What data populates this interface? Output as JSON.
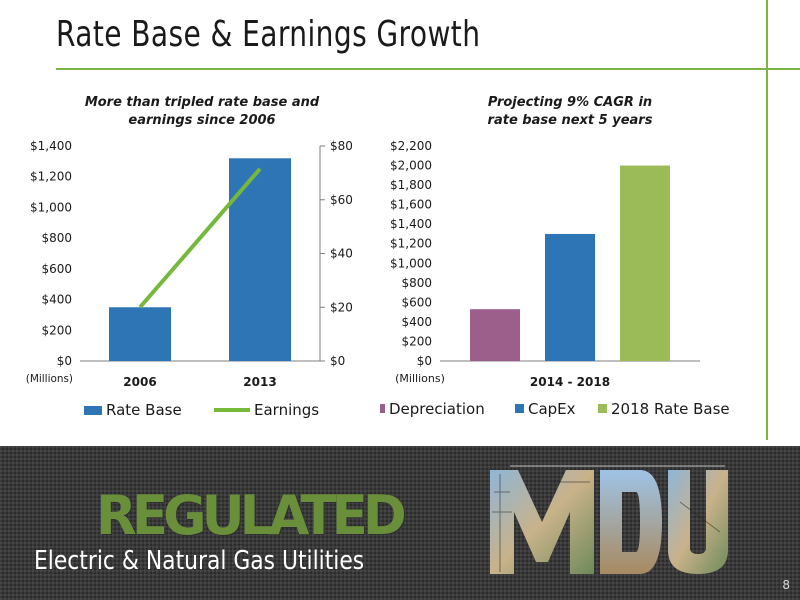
{
  "slide": {
    "title": "Rate Base & Earnings Growth",
    "page_number": "8"
  },
  "banner": {
    "regulated": "REGULATED",
    "subtitle": "Electric & Natural Gas Utilities",
    "logo_text": "MDU"
  },
  "colors": {
    "accent_green": "#7cb342",
    "rate_base_blue": "#2e75b6",
    "earnings_green": "#76b83a",
    "depreciation_purple": "#9c5e8a",
    "capex_blue": "#2e75b6",
    "rate_base_2018_green": "#9bbb59",
    "banner_dark": "#3a3a3a"
  },
  "chart_data": [
    {
      "type": "bar",
      "title": "More than tripled rate base and\nearnings since 2006",
      "categories": [
        "2006",
        "2013"
      ],
      "unit_label": "(Millions)",
      "y_left": {
        "ylim": [
          0,
          1400
        ],
        "ticks": [
          "$0",
          "$200",
          "$400",
          "$600",
          "$800",
          "$1,000",
          "$1,200",
          "$1,400"
        ],
        "tick_values": [
          0,
          200,
          400,
          600,
          800,
          1000,
          1200,
          1400
        ]
      },
      "y_right": {
        "ylim": [
          0,
          80
        ],
        "ticks": [
          "$0",
          "$20",
          "$40",
          "$60",
          "$80"
        ],
        "tick_values": [
          0,
          20,
          40,
          60,
          80
        ]
      },
      "series": [
        {
          "name": "Rate Base",
          "kind": "bar",
          "axis": "left",
          "values": [
            350,
            1320
          ]
        },
        {
          "name": "Earnings",
          "kind": "line",
          "axis": "right",
          "values": [
            20,
            71.5
          ]
        }
      ],
      "legend": "bottom"
    },
    {
      "type": "bar",
      "title": "Projecting 9% CAGR in\nrate base next 5 years",
      "categories": [
        "2014 - 2018"
      ],
      "unit_label": "(Millions)",
      "y_left": {
        "ylim": [
          0,
          2200
        ],
        "ticks": [
          "$0",
          "$200",
          "$400",
          "$600",
          "$800",
          "$1,000",
          "$1,200",
          "$1,400",
          "$1,600",
          "$1,800",
          "$2,000",
          "$2,200"
        ],
        "tick_values": [
          0,
          200,
          400,
          600,
          800,
          1000,
          1200,
          1400,
          1600,
          1800,
          2000,
          2200
        ]
      },
      "series": [
        {
          "name": "Depreciation",
          "values": [
            530
          ]
        },
        {
          "name": "CapEx",
          "values": [
            1300
          ]
        },
        {
          "name": "2018 Rate Base",
          "values": [
            2000
          ]
        }
      ],
      "legend": "bottom"
    }
  ]
}
